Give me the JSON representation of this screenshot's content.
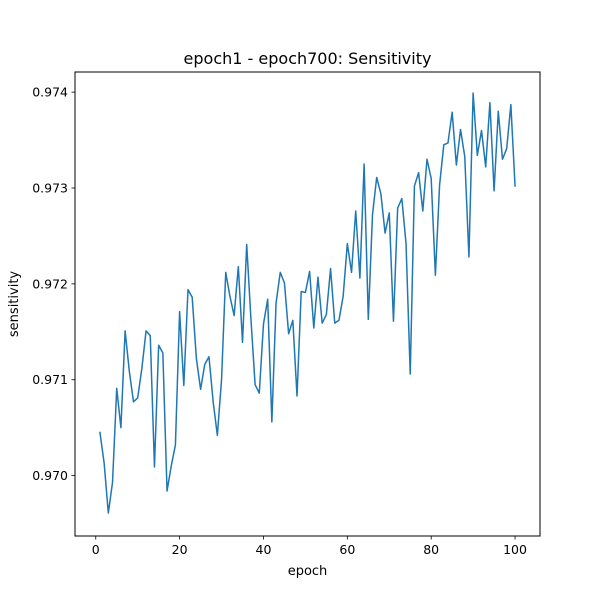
{
  "chart_data": {
    "type": "line",
    "title": "epoch1 - epoch700: Sensitivity",
    "xlabel": "epoch",
    "ylabel": "sensitivity",
    "xlim": [
      -4.95,
      105.95
    ],
    "ylim": [
      0.96937,
      0.97421
    ],
    "x_ticks": [
      0,
      20,
      40,
      60,
      80,
      100
    ],
    "x_tick_labels": [
      "0",
      "20",
      "40",
      "60",
      "80",
      "100"
    ],
    "y_ticks": [
      0.97,
      0.971,
      0.972,
      0.973,
      0.974
    ],
    "y_tick_labels": [
      "0.970",
      "0.971",
      "0.972",
      "0.973",
      "0.974"
    ],
    "grid": false,
    "series": [
      {
        "color": "#1f77b4",
        "x": [
          1,
          2,
          3,
          4,
          5,
          6,
          7,
          8,
          9,
          10,
          11,
          12,
          13,
          14,
          15,
          16,
          17,
          18,
          19,
          20,
          21,
          22,
          23,
          24,
          25,
          26,
          27,
          28,
          29,
          30,
          31,
          32,
          33,
          34,
          35,
          36,
          37,
          38,
          39,
          40,
          41,
          42,
          43,
          44,
          45,
          46,
          47,
          48,
          49,
          50,
          51,
          52,
          53,
          54,
          55,
          56,
          57,
          58,
          59,
          60,
          61,
          62,
          63,
          64,
          65,
          66,
          67,
          68,
          69,
          70,
          71,
          72,
          73,
          74,
          75,
          76,
          77,
          78,
          79,
          80,
          81,
          82,
          83,
          84,
          85,
          86,
          87,
          88,
          89,
          90,
          91,
          92,
          93,
          94,
          95,
          96,
          97,
          98,
          99,
          100
        ],
        "values": [
          0.97045,
          0.97013,
          0.96961,
          0.96993,
          0.97091,
          0.9705,
          0.97151,
          0.97109,
          0.97077,
          0.97081,
          0.97112,
          0.97151,
          0.97146,
          0.97009,
          0.97136,
          0.97128,
          0.96984,
          0.9701,
          0.97032,
          0.97171,
          0.97094,
          0.97194,
          0.97186,
          0.97122,
          0.9709,
          0.97116,
          0.97124,
          0.97077,
          0.97042,
          0.971,
          0.97212,
          0.97187,
          0.97167,
          0.97218,
          0.97139,
          0.97241,
          0.97164,
          0.97095,
          0.97086,
          0.97158,
          0.97184,
          0.97056,
          0.9718,
          0.97212,
          0.97201,
          0.97148,
          0.97162,
          0.97083,
          0.97192,
          0.97191,
          0.97213,
          0.97154,
          0.97207,
          0.97159,
          0.97168,
          0.97216,
          0.97159,
          0.97162,
          0.97187,
          0.97242,
          0.97212,
          0.97276,
          0.97206,
          0.97325,
          0.97163,
          0.97272,
          0.97311,
          0.97294,
          0.97253,
          0.97274,
          0.97161,
          0.97279,
          0.97289,
          0.97242,
          0.97106,
          0.97302,
          0.97316,
          0.97276,
          0.9733,
          0.9731,
          0.97209,
          0.97303,
          0.97345,
          0.97347,
          0.97379,
          0.97324,
          0.97361,
          0.97333,
          0.97228,
          0.97399,
          0.97334,
          0.9736,
          0.97322,
          0.97389,
          0.97297,
          0.9738,
          0.9733,
          0.97341,
          0.97387,
          0.97302
        ]
      }
    ]
  }
}
